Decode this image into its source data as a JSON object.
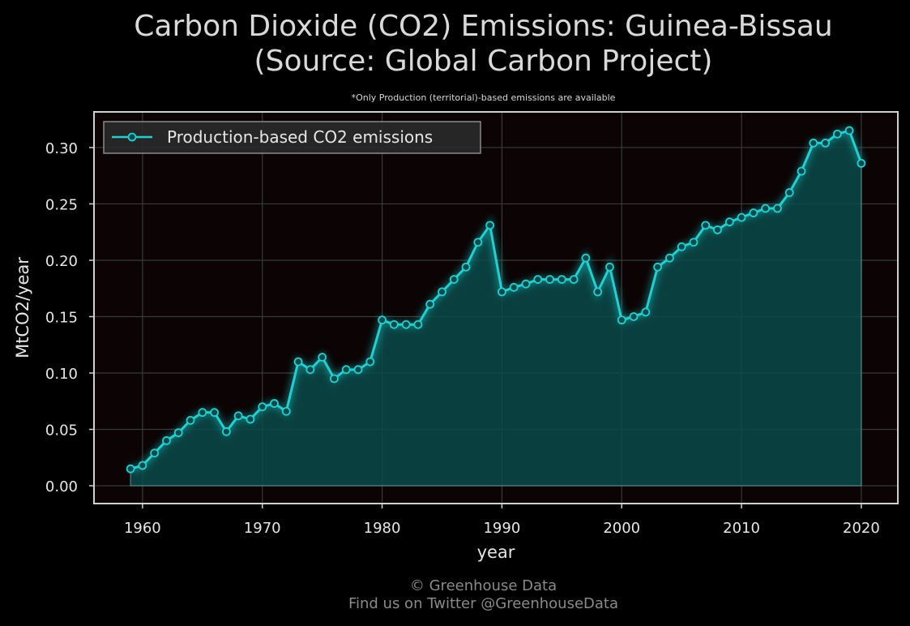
{
  "header": {
    "title_line1": "Carbon Dioxide (CO2) Emissions: Guinea-Bissau",
    "title_line2": "(Source: Global Carbon Project)",
    "note": "*Only Production (territorial)-based emissions are available"
  },
  "footer": {
    "line1": "© Greenhouse Data",
    "line2": "Find us on Twitter @GreenhouseData"
  },
  "colors": {
    "background": "#000000",
    "plot_background": "#0b0304",
    "line": "#1fd1d1",
    "fill": "#0a4a4a",
    "grid": "#3a3a3a",
    "frame": "#d0d0d0"
  },
  "chart_data": {
    "type": "area",
    "title": "Carbon Dioxide (CO2) Emissions: Guinea-Bissau (Source: Global Carbon Project)",
    "xlabel": "year",
    "ylabel": "MtCO2/year",
    "xlim": [
      1955.95,
      2023.05
    ],
    "ylim": [
      -0.0158,
      0.3316
    ],
    "xticks": [
      1960,
      1970,
      1980,
      1990,
      2000,
      2010,
      2020
    ],
    "yticks": [
      0.0,
      0.05,
      0.1,
      0.15,
      0.2,
      0.25,
      0.3
    ],
    "ytick_labels": [
      "0.00",
      "0.05",
      "0.10",
      "0.15",
      "0.20",
      "0.25",
      "0.30"
    ],
    "grid": true,
    "legend_position": "top-left",
    "series": [
      {
        "name": "Production-based CO2 emissions",
        "x": [
          1959,
          1960,
          1961,
          1962,
          1963,
          1964,
          1965,
          1966,
          1967,
          1968,
          1969,
          1970,
          1971,
          1972,
          1973,
          1974,
          1975,
          1976,
          1977,
          1978,
          1979,
          1980,
          1981,
          1982,
          1983,
          1984,
          1985,
          1986,
          1987,
          1988,
          1989,
          1990,
          1991,
          1992,
          1993,
          1994,
          1995,
          1996,
          1997,
          1998,
          1999,
          2000,
          2001,
          2002,
          2003,
          2004,
          2005,
          2006,
          2007,
          2008,
          2009,
          2010,
          2011,
          2012,
          2013,
          2014,
          2015,
          2016,
          2017,
          2018,
          2019,
          2020
        ],
        "y": [
          0.015,
          0.018,
          0.029,
          0.04,
          0.047,
          0.058,
          0.065,
          0.065,
          0.048,
          0.062,
          0.059,
          0.07,
          0.073,
          0.066,
          0.11,
          0.103,
          0.114,
          0.095,
          0.103,
          0.103,
          0.11,
          0.147,
          0.143,
          0.143,
          0.143,
          0.161,
          0.172,
          0.183,
          0.194,
          0.216,
          0.231,
          0.172,
          0.176,
          0.179,
          0.183,
          0.183,
          0.183,
          0.183,
          0.202,
          0.172,
          0.194,
          0.147,
          0.15,
          0.154,
          0.194,
          0.202,
          0.212,
          0.216,
          0.231,
          0.227,
          0.234,
          0.238,
          0.242,
          0.246,
          0.246,
          0.26,
          0.279,
          0.304,
          0.304,
          0.312,
          0.315,
          0.286
        ]
      }
    ]
  }
}
